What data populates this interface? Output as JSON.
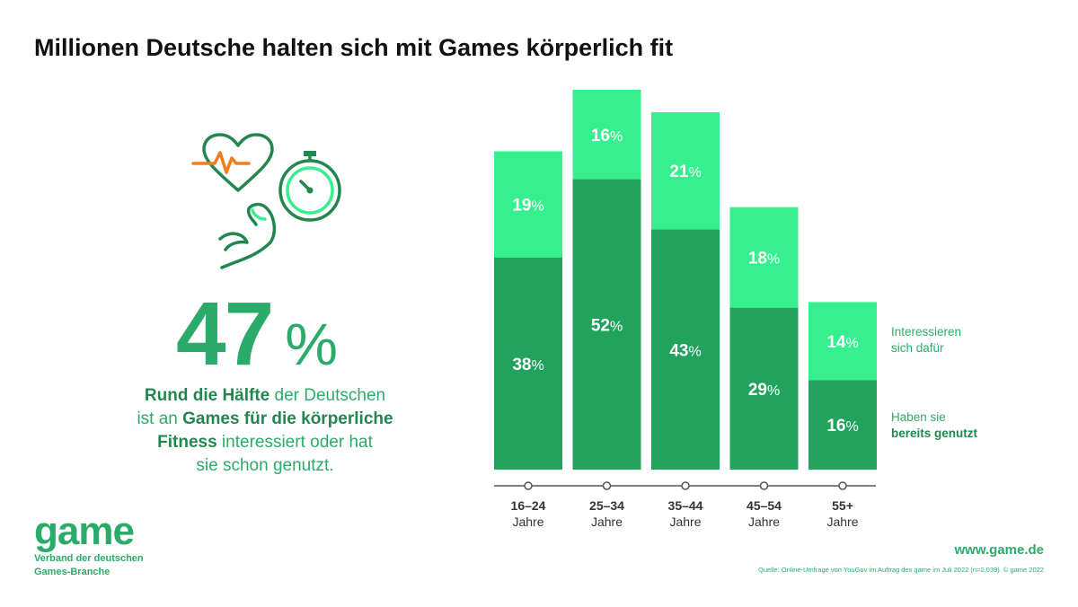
{
  "title": "Millionen Deutsche halten sich mit Games körperlich fit",
  "headline": {
    "value": "47",
    "unit": "%"
  },
  "description": {
    "p1_bold": "Rund die Hälfte",
    "p1_rest": " der Deutschen",
    "p2_pre": "ist an ",
    "p2_bold": "Games für die körperliche",
    "p3_bold": "Fitness",
    "p3_rest": " interessiert oder hat",
    "p4": "sie schon genutzt."
  },
  "legend": {
    "interested_line1": "Interessieren",
    "interested_line2": "sich dafür",
    "used_line1": "Haben sie",
    "used_line2": "bereits genutzt"
  },
  "colors": {
    "light": "#36f08f",
    "dark": "#22a35d",
    "text_green": "#2bab6a",
    "axis": "#555555"
  },
  "logo": {
    "word": "game",
    "sub1": "Verband der deutschen",
    "sub2": "Games-Branche"
  },
  "website": "www.game.de",
  "source": "Quelle: Online-Umfrage von YouGov im Auftrag des game im Juli 2022 (n=2.039). © game 2022",
  "chart_data": {
    "type": "bar",
    "stacked": true,
    "categories": [
      "16–24",
      "25–34",
      "35–44",
      "45–54",
      "55+"
    ],
    "category_sublabel": "Jahre",
    "series": [
      {
        "name": "Haben sie bereits genutzt",
        "values": [
          38,
          52,
          43,
          29,
          16
        ],
        "color": "#22a35d"
      },
      {
        "name": "Interessieren sich dafür",
        "values": [
          19,
          16,
          21,
          18,
          14
        ],
        "color": "#36f08f"
      }
    ],
    "value_suffix": "%",
    "grid": false
  },
  "icons": [
    "heart-pulse-icon",
    "stopwatch-icon",
    "flexed-arm-icon"
  ]
}
